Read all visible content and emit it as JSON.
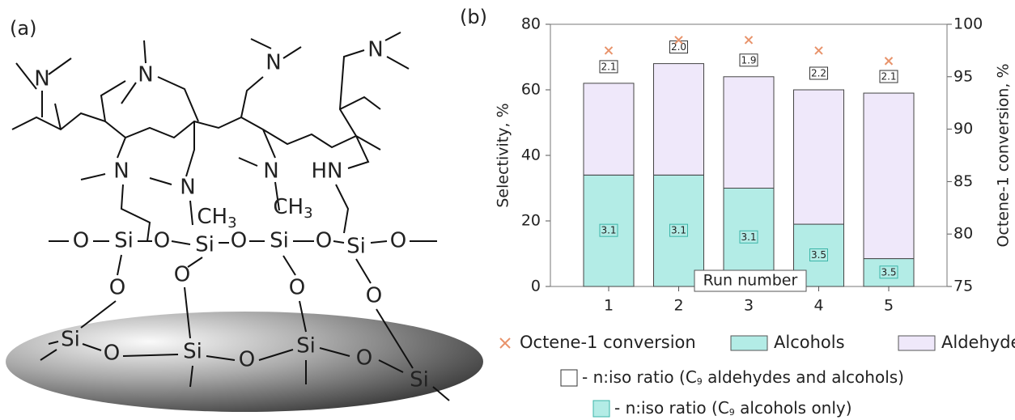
{
  "panel_a": {
    "label": "(a)",
    "atoms": [
      "N",
      "N",
      "N",
      "N",
      "N",
      "N",
      "N",
      "HN",
      "O",
      "Si",
      "O",
      "Si",
      "O",
      "Si",
      "O",
      "Si",
      "O",
      "O",
      "O",
      "O",
      "O",
      "Si",
      "Si",
      "Si",
      "Si",
      "O",
      "O",
      "O"
    ],
    "methyl_groups": [
      {
        "main": "CH",
        "sub": "3"
      },
      {
        "main": "CH",
        "sub": "3"
      }
    ]
  },
  "chart_data": {
    "type": "bar",
    "stacked": true,
    "label": "(b)",
    "x_label": "Run number",
    "y_label": "Selectivity, %",
    "y2_label": "Octene-1 conversion, %",
    "categories": [
      "1",
      "2",
      "3",
      "4",
      "5"
    ],
    "series": [
      {
        "name": "Alcohols",
        "color": "#b3ece6",
        "values": [
          34,
          34,
          30,
          19,
          8.5
        ]
      },
      {
        "name": "Aldehydes",
        "color": "#efe8fa",
        "values": [
          28,
          34,
          34,
          41,
          50.5
        ]
      },
      {
        "name": "Octene-1 conversion",
        "color": "#e8936b",
        "type": "scatter",
        "marker": "x",
        "axis": "y2",
        "values": [
          97.5,
          98.5,
          98.5,
          97.5,
          96.5
        ]
      }
    ],
    "ratio_all_labels": [
      "2.1",
      "2.0",
      "1.9",
      "2.2",
      "2.1"
    ],
    "ratio_alcohols_labels": [
      "3.1",
      "3.1",
      "3.1",
      "3.5",
      "3.5"
    ],
    "ylim": [
      0,
      80
    ],
    "yticks": [
      0,
      20,
      40,
      60,
      80
    ],
    "y2lim": [
      75,
      100
    ],
    "y2ticks": [
      75,
      80,
      85,
      90,
      95,
      100
    ],
    "legend_notes": [
      {
        "pre": "- n:iso ratio (C",
        "sub": "9",
        "post": " aldehydes and alcohols)"
      },
      {
        "pre": "- n:iso ratio (C",
        "sub": "9",
        "post": " alcohols only)"
      }
    ]
  }
}
